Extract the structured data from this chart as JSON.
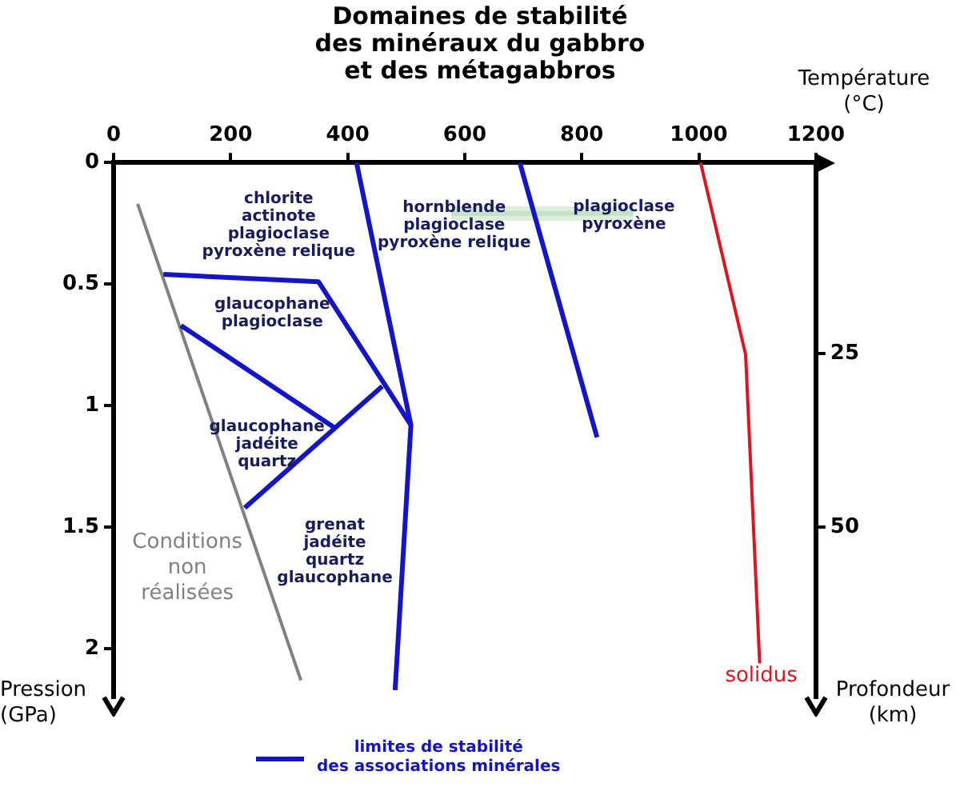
{
  "chart_data": {
    "type": "line",
    "title": "Domaines de stabilité\ndes minéraux du gabbro\net des métagabbros",
    "xlabel": "Température\n(°C)",
    "ylabel": "Pression\n(GPa)",
    "y2label": "Profondeur\n(km)",
    "xlim": [
      0,
      1200
    ],
    "xticks": [
      0,
      200,
      400,
      600,
      800,
      1000,
      1200
    ],
    "ylim": [
      2.2,
      0
    ],
    "yticks": [
      0,
      0.5,
      1,
      1.5,
      2
    ],
    "y2lim": [
      74.5,
      -2.5
    ],
    "y2ticks": [
      25,
      50
    ],
    "grid": false,
    "legend": "bottom",
    "series": [
      {
        "name": "limites de stabilité\ndes associations minérales",
        "color": "#1414c8",
        "x": [
          415,
          508,
          481
        ],
        "values": [
          0,
          1.08,
          2.17
        ]
      },
      {
        "color": "#1414c8",
        "x": [
          85,
          350,
          508
        ],
        "values": [
          0.46,
          0.49,
          1.08
        ]
      },
      {
        "color": "#1414c8",
        "x": [
          115,
          377
        ],
        "values": [
          0.67,
          1.09
        ]
      },
      {
        "color": "#1414c8",
        "x": [
          224,
          459
        ],
        "values": [
          1.42,
          0.92
        ]
      },
      {
        "color": "#1414c8",
        "x": [
          694,
          826
        ],
        "values": [
          0,
          1.13
        ]
      },
      {
        "name": "Conditions\nnon\nréalisées",
        "color": "#808080",
        "x": [
          41,
          320
        ],
        "values": [
          0.17,
          2.13
        ]
      },
      {
        "name": "solidus",
        "color": "#e0141e",
        "x": [
          1003,
          1080,
          1104
        ],
        "values": [
          0,
          0.79,
          2.06
        ]
      },
      {
        "color": "#c6e2c6",
        "x": [
          577,
          888
        ],
        "values": [
          0.21,
          0.21
        ],
        "lower": [
          0.18,
          0.18
        ],
        "upper": [
          0.24,
          0.24
        ]
      }
    ],
    "annotations": [
      "chlorite\nactinote\nplagioclase\npyroxène relique",
      "hornblende\nplagioclase\npyroxène relique",
      "plagioclase\npyroxène",
      "glaucophane\nplagioclase",
      "glaucophane\njadéite\nquartz",
      "grenat\njadéite\nquartz\nglaucophane"
    ]
  }
}
